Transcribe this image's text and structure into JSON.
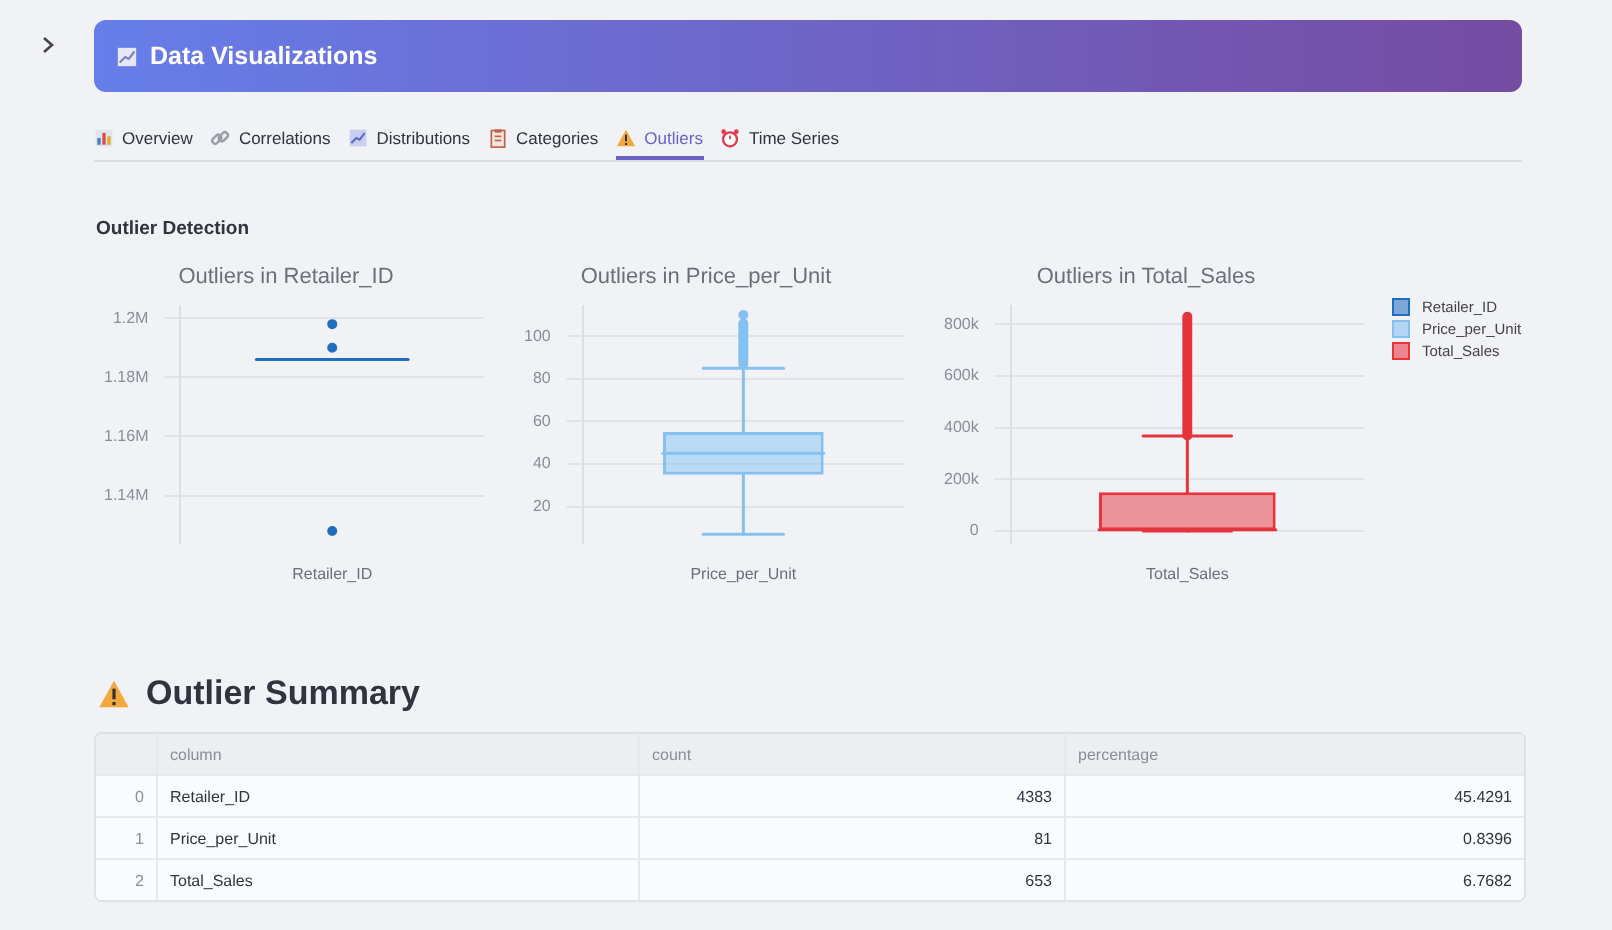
{
  "chart_data": [
    {
      "type": "other",
      "title": "Data Visualizations",
      "subtitle": "Outlier Detection",
      "annotations": [
        "Overview",
        "Correlations",
        "Distributions",
        "Categories",
        "Outliers",
        "Time Series"
      ]
    },
    {
      "type": "box",
      "title": "Outliers in Retailer_ID",
      "categories": [
        "Retailer_ID"
      ],
      "series": [
        {
          "name": "Retailer_ID",
          "color": "#1f6fc0",
          "boxes": [
            {
              "low": 1186000,
              "q1": 1186000,
              "median": 1186000,
              "q3": 1186000,
              "high": 1186000,
              "outliers": [
                1198000,
                1190000,
                1128000
              ]
            }
          ]
        }
      ],
      "ylim": [
        1124000,
        1204000
      ],
      "yticks": [
        {
          "value": 1140000,
          "label": "1.14M"
        },
        {
          "value": 1160000,
          "label": "1.16M"
        },
        {
          "value": 1180000,
          "label": "1.18M"
        },
        {
          "value": 1200000,
          "label": "1.2M"
        }
      ],
      "grid": "y",
      "marker": "circle"
    },
    {
      "type": "box",
      "title": "Outliers in Price_per_Unit",
      "categories": [
        "Price_per_Unit"
      ],
      "series": [
        {
          "name": "Price_per_Unit",
          "color": "#85c1f0",
          "boxes": [
            {
              "low": 7,
              "q1": 35,
              "median": 45,
              "q3": 55,
              "high": 85,
              "outliers": [
                87,
                88,
                89,
                90,
                91,
                92,
                93,
                94,
                95,
                96,
                97,
                98,
                99,
                100,
                101,
                102,
                103,
                104,
                105,
                106,
                110
              ]
            }
          ]
        }
      ],
      "ylim": [
        3,
        114
      ],
      "yticks": [
        20,
        40,
        60,
        80,
        100
      ],
      "grid": "y",
      "marker": "circle"
    },
    {
      "type": "box",
      "title": "Outliers in Total_Sales",
      "categories": [
        "Total_Sales"
      ],
      "series": [
        {
          "name": "Total_Sales",
          "color": "#e5343b",
          "boxes": [
            {
              "low": 0,
              "q1": 3000,
              "median": 5000,
              "q3": 150000,
              "high": 368000,
              "outliers": [
                370000,
                380000,
                390000,
                400000,
                410000,
                420000,
                430000,
                440000,
                450000,
                460000,
                470000,
                480000,
                490000,
                500000,
                510000,
                520000,
                530000,
                540000,
                550000,
                560000,
                570000,
                580000,
                590000,
                600000,
                610000,
                620000,
                630000,
                640000,
                650000,
                660000,
                670000,
                680000,
                690000,
                700000,
                710000,
                720000,
                730000,
                740000,
                750000,
                760000,
                770000,
                780000,
                790000,
                800000,
                810000,
                820000,
                830000
              ]
            }
          ]
        }
      ],
      "ylim": [
        -46000,
        870000
      ],
      "yticks": [
        0,
        {
          "value": 200000,
          "label": "200k"
        },
        {
          "value": 400000,
          "label": "400k"
        },
        {
          "value": 600000,
          "label": "600k"
        },
        {
          "value": 800000,
          "label": "800k"
        }
      ],
      "grid": "y",
      "marker": "circle",
      "legend": "right"
    },
    {
      "type": "other",
      "title": "Outlier Summary",
      "categories": [
        "column",
        "count",
        "percentage"
      ],
      "y_categories": [
        "0",
        "1",
        "2"
      ],
      "cell_labels": [
        [
          "Retailer_ID",
          "4383",
          "45.4291"
        ],
        [
          "Price_per_Unit",
          "81",
          "0.8396"
        ],
        [
          "Total_Sales",
          "653",
          "6.7682"
        ]
      ]
    }
  ]
}
